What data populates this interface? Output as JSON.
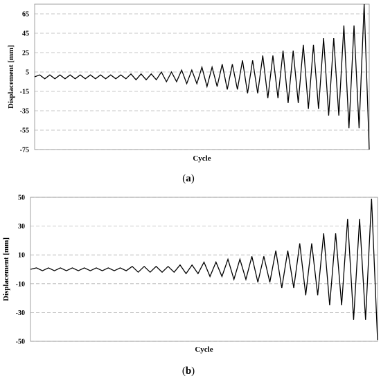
{
  "chart_data": [
    {
      "type": "line",
      "caption": "(a)",
      "caption_letter": "a",
      "xlabel": "Cycle",
      "ylabel": "Displacement [mm]",
      "ylim": [
        -75,
        75
      ],
      "yticks": [
        65,
        45,
        25,
        5,
        -15,
        -35,
        -55,
        -75
      ],
      "grid": "horizontal dashed",
      "x_ticks_shown": false,
      "amplitudes": [
        2,
        2,
        2,
        2,
        2,
        2,
        2,
        2,
        2,
        3,
        3,
        3,
        5,
        5,
        7,
        7,
        10,
        10,
        13,
        13,
        17,
        17,
        22,
        22,
        27,
        27,
        33,
        33,
        40,
        40,
        53,
        53,
        75
      ],
      "end_value": -75,
      "points_per_cycle": "start 0 → +A → -A, repeated; final cycle descends from +75 to -75",
      "color": "#000000"
    },
    {
      "type": "line",
      "caption": "(b)",
      "caption_letter": "b",
      "xlabel": "Cycle",
      "ylabel": "Displacement [mm]",
      "ylim": [
        -50,
        50
      ],
      "yticks": [
        50,
        30,
        10,
        -10,
        -30,
        -50
      ],
      "grid": "horizontal dashed",
      "x_ticks_shown": false,
      "amplitudes": [
        1,
        1,
        1,
        1,
        1,
        1,
        1,
        1,
        2,
        2,
        2,
        2,
        3,
        3,
        5,
        5,
        7,
        7,
        9,
        9,
        13,
        13,
        18,
        18,
        25,
        25,
        35,
        35,
        49
      ],
      "end_value": -49,
      "points_per_cycle": "start 0 → +A → -A, repeated; final cycle descends from +49 to -49",
      "color": "#000000"
    }
  ]
}
